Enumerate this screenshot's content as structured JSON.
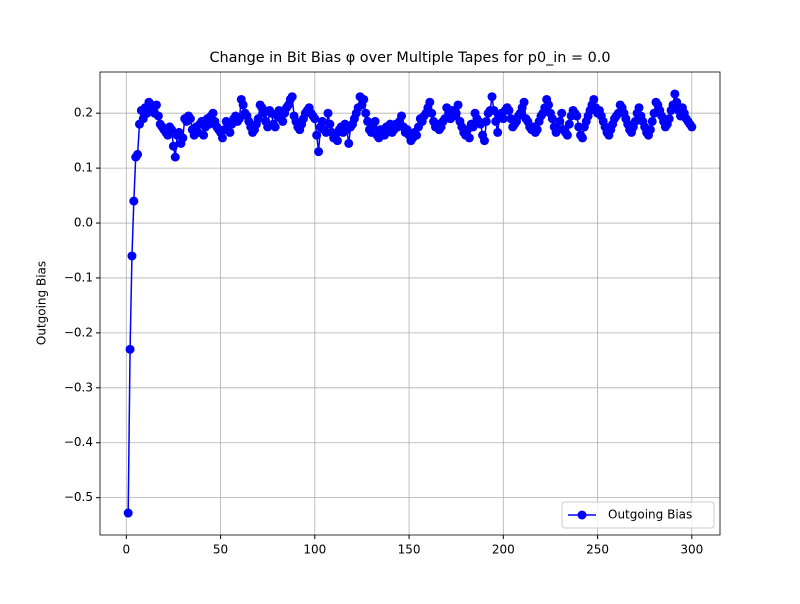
{
  "chart_data": {
    "type": "line",
    "title": "Change in Bit Bias φ over Multiple Tapes for p0_in = 0.0",
    "ylabel": "Outgoing Bias",
    "x": [
      1,
      2,
      3,
      4,
      5,
      6,
      7,
      8,
      9,
      10,
      11,
      12,
      13,
      14,
      15,
      16,
      17,
      18,
      19,
      20,
      21,
      22,
      23,
      24,
      25,
      26,
      27,
      28,
      29,
      30,
      31,
      32,
      33,
      34,
      35,
      36,
      37,
      38,
      39,
      40,
      41,
      42,
      43,
      44,
      45,
      46,
      47,
      48,
      49,
      50,
      51,
      52,
      53,
      54,
      55,
      56,
      57,
      58,
      59,
      60,
      61,
      62,
      63,
      64,
      65,
      66,
      67,
      68,
      69,
      70,
      71,
      72,
      73,
      74,
      75,
      76,
      77,
      78,
      79,
      80,
      81,
      82,
      83,
      84,
      85,
      86,
      87,
      88,
      89,
      90,
      91,
      92,
      93,
      94,
      95,
      96,
      97,
      98,
      99,
      100,
      101,
      102,
      103,
      104,
      105,
      106,
      107,
      108,
      109,
      110,
      111,
      112,
      113,
      114,
      115,
      116,
      117,
      118,
      119,
      120,
      121,
      122,
      123,
      124,
      125,
      126,
      127,
      128,
      129,
      130,
      131,
      132,
      133,
      134,
      135,
      136,
      137,
      138,
      139,
      140,
      141,
      142,
      143,
      144,
      145,
      146,
      147,
      148,
      149,
      150,
      151,
      152,
      153,
      154,
      155,
      156,
      157,
      158,
      159,
      160,
      161,
      162,
      163,
      164,
      165,
      166,
      167,
      168,
      169,
      170,
      171,
      172,
      173,
      174,
      175,
      176,
      177,
      178,
      179,
      180,
      181,
      182,
      183,
      184,
      185,
      186,
      187,
      188,
      189,
      190,
      191,
      192,
      193,
      194,
      195,
      196,
      197,
      198,
      199,
      200,
      201,
      202,
      203,
      204,
      205,
      206,
      207,
      208,
      209,
      210,
      211,
      212,
      213,
      214,
      215,
      216,
      217,
      218,
      219,
      220,
      221,
      222,
      223,
      224,
      225,
      226,
      227,
      228,
      229,
      230,
      231,
      232,
      233,
      234,
      235,
      236,
      237,
      238,
      239,
      240,
      241,
      242,
      243,
      244,
      245,
      246,
      247,
      248,
      249,
      250,
      251,
      252,
      253,
      254,
      255,
      256,
      257,
      258,
      259,
      260,
      261,
      262,
      263,
      264,
      265,
      266,
      267,
      268,
      269,
      270,
      271,
      272,
      273,
      274,
      275,
      276,
      277,
      278,
      279,
      280,
      281,
      282,
      283,
      284,
      285,
      286,
      287,
      288,
      289,
      290,
      291,
      292,
      293,
      294,
      295,
      296,
      297,
      298,
      299,
      300
    ],
    "series": [
      {
        "name": "Outgoing Bias",
        "color": "#0000ff",
        "values": [
          -0.528,
          -0.23,
          -0.06,
          0.04,
          0.12,
          0.125,
          0.18,
          0.205,
          0.19,
          0.21,
          0.2,
          0.22,
          0.215,
          0.21,
          0.2,
          0.215,
          0.195,
          0.18,
          0.175,
          0.17,
          0.165,
          0.16,
          0.175,
          0.17,
          0.14,
          0.12,
          0.16,
          0.165,
          0.145,
          0.155,
          0.19,
          0.185,
          0.195,
          0.19,
          0.17,
          0.16,
          0.175,
          0.165,
          0.18,
          0.185,
          0.16,
          0.175,
          0.19,
          0.18,
          0.195,
          0.2,
          0.185,
          0.175,
          0.17,
          0.165,
          0.155,
          0.17,
          0.185,
          0.175,
          0.165,
          0.18,
          0.19,
          0.195,
          0.185,
          0.19,
          0.225,
          0.215,
          0.2,
          0.195,
          0.185,
          0.175,
          0.165,
          0.17,
          0.18,
          0.19,
          0.215,
          0.21,
          0.2,
          0.185,
          0.175,
          0.205,
          0.2,
          0.18,
          0.175,
          0.195,
          0.205,
          0.19,
          0.185,
          0.2,
          0.21,
          0.215,
          0.225,
          0.23,
          0.195,
          0.185,
          0.175,
          0.17,
          0.18,
          0.19,
          0.2,
          0.205,
          0.21,
          0.2,
          0.195,
          0.19,
          0.16,
          0.13,
          0.175,
          0.185,
          0.17,
          0.165,
          0.2,
          0.18,
          0.165,
          0.155,
          0.16,
          0.15,
          0.17,
          0.175,
          0.165,
          0.18,
          0.17,
          0.145,
          0.175,
          0.18,
          0.19,
          0.2,
          0.21,
          0.23,
          0.215,
          0.225,
          0.2,
          0.185,
          0.17,
          0.165,
          0.175,
          0.185,
          0.16,
          0.155,
          0.17,
          0.165,
          0.16,
          0.175,
          0.17,
          0.18,
          0.165,
          0.17,
          0.18,
          0.175,
          0.185,
          0.195,
          0.175,
          0.165,
          0.17,
          0.16,
          0.15,
          0.155,
          0.165,
          0.16,
          0.175,
          0.19,
          0.185,
          0.195,
          0.2,
          0.21,
          0.22,
          0.2,
          0.185,
          0.175,
          0.18,
          0.17,
          0.175,
          0.185,
          0.19,
          0.21,
          0.2,
          0.19,
          0.205,
          0.195,
          0.2,
          0.215,
          0.185,
          0.175,
          0.165,
          0.16,
          0.17,
          0.155,
          0.18,
          0.175,
          0.2,
          0.19,
          0.185,
          0.18,
          0.16,
          0.15,
          0.185,
          0.2,
          0.205,
          0.23,
          0.205,
          0.185,
          0.165,
          0.195,
          0.2,
          0.19,
          0.205,
          0.21,
          0.205,
          0.19,
          0.175,
          0.18,
          0.185,
          0.195,
          0.2,
          0.21,
          0.22,
          0.19,
          0.185,
          0.175,
          0.17,
          0.175,
          0.165,
          0.17,
          0.185,
          0.195,
          0.2,
          0.21,
          0.225,
          0.215,
          0.2,
          0.19,
          0.175,
          0.165,
          0.17,
          0.185,
          0.2,
          0.17,
          0.165,
          0.16,
          0.18,
          0.195,
          0.205,
          0.2,
          0.195,
          0.175,
          0.16,
          0.155,
          0.175,
          0.185,
          0.195,
          0.205,
          0.215,
          0.225,
          0.21,
          0.2,
          0.205,
          0.195,
          0.185,
          0.175,
          0.165,
          0.16,
          0.17,
          0.18,
          0.19,
          0.195,
          0.2,
          0.215,
          0.21,
          0.2,
          0.19,
          0.18,
          0.17,
          0.165,
          0.175,
          0.185,
          0.2,
          0.21,
          0.195,
          0.185,
          0.175,
          0.165,
          0.16,
          0.17,
          0.185,
          0.2,
          0.22,
          0.215,
          0.205,
          0.195,
          0.185,
          0.175,
          0.18,
          0.19,
          0.205,
          0.215,
          0.235,
          0.22,
          0.205,
          0.195,
          0.21,
          0.2,
          0.19,
          0.185,
          0.18,
          0.175
        ]
      }
    ],
    "xlim": [
      -13.95,
      314.95
    ],
    "ylim": [
      -0.568,
      0.275
    ],
    "xticks": [
      0,
      50,
      100,
      150,
      200,
      250,
      300
    ],
    "yticks": [
      {
        "value": -0.5,
        "label": "−0.5"
      },
      {
        "value": -0.4,
        "label": "−0.4"
      },
      {
        "value": -0.3,
        "label": "−0.3"
      },
      {
        "value": -0.2,
        "label": "−0.2"
      },
      {
        "value": -0.1,
        "label": "−0.1"
      },
      {
        "value": 0,
        "label": "0.0"
      },
      0.1,
      0.2
    ],
    "grid": true,
    "legend": "lower right"
  }
}
